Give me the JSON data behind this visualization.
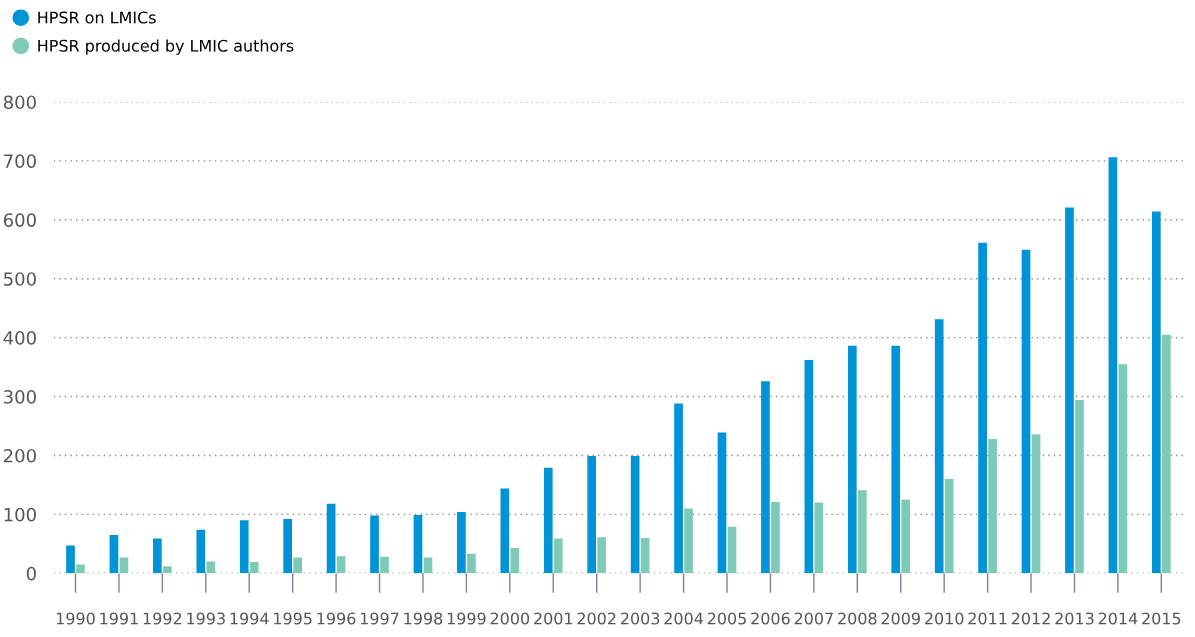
{
  "chart_data": {
    "type": "bar",
    "categories": [
      "1990",
      "1991",
      "1992",
      "1993",
      "1994",
      "1995",
      "1996",
      "1997",
      "1998",
      "1999",
      "2000",
      "2001",
      "2002",
      "2003",
      "2004",
      "2005",
      "2006",
      "2007",
      "2008",
      "2009",
      "2010",
      "2011",
      "2012",
      "2013",
      "2014",
      "2015"
    ],
    "series": [
      {
        "name": "HPSR on LMICs",
        "color": "#0093d5",
        "values": [
          47,
          65,
          59,
          74,
          90,
          92,
          118,
          98,
          99,
          104,
          144,
          179,
          199,
          199,
          288,
          239,
          326,
          362,
          386,
          386,
          431,
          561,
          549,
          621,
          706,
          614
        ]
      },
      {
        "name": "HPSR produced by LMIC authors",
        "color": "#7fcab5",
        "values": [
          15,
          27,
          12,
          20,
          19,
          27,
          29,
          28,
          27,
          33,
          43,
          59,
          61,
          60,
          110,
          79,
          121,
          120,
          141,
          125,
          160,
          228,
          236,
          294,
          355,
          405
        ]
      }
    ],
    "ylim": [
      0,
      800
    ],
    "yticks": [
      0,
      100,
      200,
      300,
      400,
      500,
      600,
      700,
      800
    ],
    "grid": "y",
    "legend": "top left"
  }
}
